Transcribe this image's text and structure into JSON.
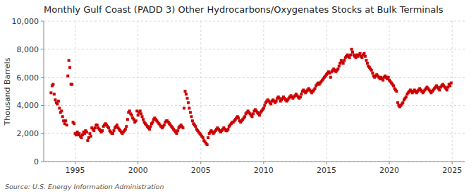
{
  "chart_data": {
    "type": "scatter",
    "title": "Monthly Gulf Coast (PADD 3) Other Hydrocarbons/Oxygenates Stocks at Bulk Terminals",
    "ylabel": "Thousand Barrels",
    "source": "Source: U.S. Energy Information Administration",
    "color": "#cc0000",
    "marker": "square",
    "grid": true,
    "xlim": [
      1992.5,
      2026.0
    ],
    "ylim": [
      0,
      10000
    ],
    "xticks": [
      1995,
      2000,
      2005,
      2010,
      2015,
      2020,
      2025
    ],
    "yticks": [
      0,
      {
        "value": 2000,
        "label": "2,000"
      },
      {
        "value": 4000,
        "label": "4,000"
      },
      {
        "value": 6000,
        "label": "6,000"
      },
      {
        "value": 8000,
        "label": "8,000"
      },
      {
        "value": 10000,
        "label": "10,000"
      }
    ],
    "x": [
      1993.08,
      1993.17,
      1993.25,
      1993.33,
      1993.42,
      1993.5,
      1993.58,
      1993.67,
      1993.75,
      1993.83,
      1993.92,
      1994.0,
      1994.08,
      1994.17,
      1994.25,
      1994.33,
      1994.42,
      1994.5,
      1994.58,
      1994.67,
      1994.75,
      1994.83,
      1994.92,
      1995.0,
      1995.08,
      1995.17,
      1995.25,
      1995.33,
      1995.42,
      1995.5,
      1995.58,
      1995.67,
      1995.75,
      1995.83,
      1995.92,
      1996.0,
      1996.08,
      1996.17,
      1996.25,
      1996.33,
      1996.42,
      1996.5,
      1996.58,
      1996.67,
      1996.75,
      1996.83,
      1996.92,
      1997.0,
      1997.08,
      1997.17,
      1997.25,
      1997.33,
      1997.42,
      1997.5,
      1997.58,
      1997.67,
      1997.75,
      1997.83,
      1997.92,
      1998.0,
      1998.08,
      1998.17,
      1998.25,
      1998.33,
      1998.42,
      1998.5,
      1998.58,
      1998.67,
      1998.75,
      1998.83,
      1998.92,
      1999.0,
      1999.08,
      1999.17,
      1999.25,
      1999.33,
      1999.42,
      1999.5,
      1999.58,
      1999.67,
      1999.75,
      1999.83,
      1999.92,
      2000.0,
      2000.08,
      2000.17,
      2000.25,
      2000.33,
      2000.42,
      2000.5,
      2000.58,
      2000.67,
      2000.75,
      2000.83,
      2000.92,
      2001.0,
      2001.08,
      2001.17,
      2001.25,
      2001.33,
      2001.42,
      2001.5,
      2001.58,
      2001.67,
      2001.75,
      2001.83,
      2001.92,
      2002.0,
      2002.08,
      2002.17,
      2002.25,
      2002.33,
      2002.42,
      2002.5,
      2002.58,
      2002.67,
      2002.75,
      2002.83,
      2002.92,
      2003.0,
      2003.08,
      2003.17,
      2003.25,
      2003.33,
      2003.42,
      2003.5,
      2003.58,
      2003.67,
      2003.75,
      2003.83,
      2003.92,
      2004.0,
      2004.08,
      2004.17,
      2004.25,
      2004.33,
      2004.42,
      2004.5,
      2004.58,
      2004.67,
      2004.75,
      2004.83,
      2004.92,
      2005.0,
      2005.08,
      2005.17,
      2005.25,
      2005.33,
      2005.42,
      2005.5,
      2005.58,
      2005.67,
      2005.75,
      2005.83,
      2005.92,
      2006.0,
      2006.08,
      2006.17,
      2006.25,
      2006.33,
      2006.42,
      2006.5,
      2006.58,
      2006.67,
      2006.75,
      2006.83,
      2006.92,
      2007.0,
      2007.08,
      2007.17,
      2007.25,
      2007.33,
      2007.42,
      2007.5,
      2007.58,
      2007.67,
      2007.75,
      2007.83,
      2007.92,
      2008.0,
      2008.08,
      2008.17,
      2008.25,
      2008.33,
      2008.42,
      2008.5,
      2008.58,
      2008.67,
      2008.75,
      2008.83,
      2008.92,
      2009.0,
      2009.08,
      2009.17,
      2009.25,
      2009.33,
      2009.42,
      2009.5,
      2009.58,
      2009.67,
      2009.75,
      2009.83,
      2009.92,
      2010.0,
      2010.08,
      2010.17,
      2010.25,
      2010.33,
      2010.42,
      2010.5,
      2010.58,
      2010.67,
      2010.75,
      2010.83,
      2010.92,
      2011.0,
      2011.08,
      2011.17,
      2011.25,
      2011.33,
      2011.42,
      2011.5,
      2011.58,
      2011.67,
      2011.75,
      2011.83,
      2011.92,
      2012.0,
      2012.08,
      2012.17,
      2012.25,
      2012.33,
      2012.42,
      2012.5,
      2012.58,
      2012.67,
      2012.75,
      2012.83,
      2012.92,
      2013.0,
      2013.08,
      2013.17,
      2013.25,
      2013.33,
      2013.42,
      2013.5,
      2013.58,
      2013.67,
      2013.75,
      2013.83,
      2013.92,
      2014.0,
      2014.08,
      2014.17,
      2014.25,
      2014.33,
      2014.42,
      2014.5,
      2014.58,
      2014.67,
      2014.75,
      2014.83,
      2014.92,
      2015.0,
      2015.08,
      2015.17,
      2015.25,
      2015.33,
      2015.42,
      2015.5,
      2015.58,
      2015.67,
      2015.75,
      2015.83,
      2015.92,
      2016.0,
      2016.08,
      2016.17,
      2016.25,
      2016.33,
      2016.42,
      2016.5,
      2016.58,
      2016.67,
      2016.75,
      2016.83,
      2016.92,
      2017.0,
      2017.08,
      2017.17,
      2017.25,
      2017.33,
      2017.42,
      2017.5,
      2017.58,
      2017.67,
      2017.75,
      2017.83,
      2017.92,
      2018.0,
      2018.08,
      2018.17,
      2018.25,
      2018.33,
      2018.42,
      2018.5,
      2018.58,
      2018.67,
      2018.75,
      2018.83,
      2018.92,
      2019.0,
      2019.08,
      2019.17,
      2019.25,
      2019.33,
      2019.42,
      2019.5,
      2019.58,
      2019.67,
      2019.75,
      2019.83,
      2019.92,
      2020.0,
      2020.08,
      2020.17,
      2020.25,
      2020.33,
      2020.42,
      2020.5,
      2020.58,
      2020.67,
      2020.75,
      2020.83,
      2020.92,
      2021.0,
      2021.08,
      2021.17,
      2021.25,
      2021.33,
      2021.42,
      2021.5,
      2021.58,
      2021.67,
      2021.75,
      2021.83,
      2021.92,
      2022.0,
      2022.08,
      2022.17,
      2022.25,
      2022.33,
      2022.42,
      2022.5,
      2022.58,
      2022.67,
      2022.75,
      2022.83,
      2022.92,
      2023.0,
      2023.08,
      2023.17,
      2023.25,
      2023.33,
      2023.42,
      2023.5,
      2023.58,
      2023.67,
      2023.75,
      2023.83,
      2023.92,
      2024.0,
      2024.08,
      2024.17,
      2024.25,
      2024.33,
      2024.42,
      2024.5,
      2024.58,
      2024.67,
      2024.75,
      2024.83,
      2024.92
    ],
    "values": [
      4900,
      5400,
      5500,
      4800,
      4400,
      4200,
      4100,
      4300,
      3800,
      3500,
      3600,
      3200,
      2900,
      2700,
      2900,
      2600,
      6100,
      7200,
      6700,
      5500,
      5500,
      2800,
      2700,
      2000,
      1900,
      2100,
      1900,
      2000,
      1800,
      1700,
      1900,
      2100,
      2000,
      2200,
      2100,
      1500,
      1700,
      2000,
      1800,
      2400,
      2300,
      2200,
      2400,
      2600,
      2600,
      2400,
      2300,
      2200,
      2100,
      2200,
      2500,
      2600,
      2700,
      2600,
      2500,
      2400,
      2200,
      2100,
      2000,
      2000,
      2200,
      2400,
      2500,
      2600,
      2400,
      2300,
      2200,
      2100,
      2000,
      2100,
      2200,
      2300,
      2500,
      3000,
      3500,
      3600,
      3400,
      3300,
      3100,
      3000,
      2800,
      2900,
      3600,
      3300,
      3500,
      3600,
      3400,
      3200,
      3000,
      2800,
      2700,
      2600,
      2500,
      2400,
      2300,
      2500,
      2700,
      2800,
      3000,
      3100,
      3000,
      2900,
      2800,
      2700,
      2600,
      2500,
      2400,
      2500,
      2600,
      2800,
      2900,
      2900,
      2800,
      2700,
      2600,
      2500,
      2400,
      2300,
      2200,
      2100,
      2000,
      2200,
      2400,
      2500,
      2600,
      2500,
      2400,
      3800,
      5000,
      4800,
      4500,
      4200,
      3800,
      3500,
      3200,
      2900,
      2700,
      2600,
      2500,
      2300,
      2200,
      2100,
      2000,
      1900,
      1800,
      1700,
      1500,
      1400,
      1300,
      1200,
      1700,
      2000,
      2100,
      2200,
      2100,
      2000,
      2100,
      2200,
      2300,
      2400,
      2300,
      2200,
      2100,
      2200,
      2300,
      2400,
      2300,
      2200,
      2200,
      2300,
      2500,
      2600,
      2700,
      2800,
      2800,
      2900,
      3000,
      3100,
      3200,
      3100,
      2900,
      2800,
      2900,
      3000,
      3100,
      3200,
      3400,
      3500,
      3600,
      3500,
      3400,
      3300,
      3200,
      3400,
      3600,
      3700,
      3600,
      3500,
      3400,
      3300,
      3500,
      3600,
      3700,
      3800,
      4000,
      4200,
      4300,
      4400,
      4300,
      4200,
      4100,
      4300,
      4400,
      4300,
      4200,
      4300,
      4500,
      4600,
      4500,
      4300,
      4400,
      4500,
      4600,
      4500,
      4400,
      4300,
      4400,
      4500,
      4600,
      4700,
      4600,
      4500,
      4600,
      4700,
      4800,
      4700,
      4600,
      4500,
      4600,
      4800,
      5000,
      5100,
      5000,
      4900,
      5000,
      5100,
      5200,
      5100,
      5000,
      4900,
      5000,
      5100,
      5200,
      5400,
      5500,
      5600,
      5500,
      5600,
      5700,
      5800,
      5900,
      6000,
      6100,
      6200,
      6300,
      6400,
      6300,
      6000,
      6400,
      6500,
      6600,
      6500,
      6400,
      6500,
      6600,
      6800,
      7000,
      7200,
      7100,
      7000,
      7200,
      7400,
      7500,
      7600,
      7500,
      7400,
      7600,
      8000,
      7800,
      7600,
      7500,
      7400,
      7600,
      7500,
      7600,
      7700,
      7500,
      7400,
      7600,
      7700,
      7500,
      7200,
      7000,
      6800,
      6700,
      6600,
      6500,
      6300,
      6100,
      6000,
      6100,
      6200,
      6100,
      6000,
      5900,
      6000,
      5900,
      5800,
      6000,
      6100,
      6000,
      5900,
      6000,
      5800,
      5700,
      5600,
      5500,
      5400,
      5200,
      5100,
      5000,
      4200,
      4000,
      3900,
      4000,
      4100,
      4200,
      4400,
      4500,
      4600,
      4800,
      4900,
      5000,
      5100,
      5000,
      4900,
      5000,
      5100,
      5000,
      4900,
      5000,
      5100,
      5200,
      5100,
      5000,
      4900,
      5000,
      5100,
      5200,
      5300,
      5200,
      5100,
      5000,
      4900,
      5000,
      5100,
      5200,
      5300,
      5400,
      5300,
      5200,
      5100,
      5300,
      5400,
      5500,
      5400,
      5300,
      5200,
      5100,
      5300,
      5500,
      5400,
      5600
    ]
  }
}
